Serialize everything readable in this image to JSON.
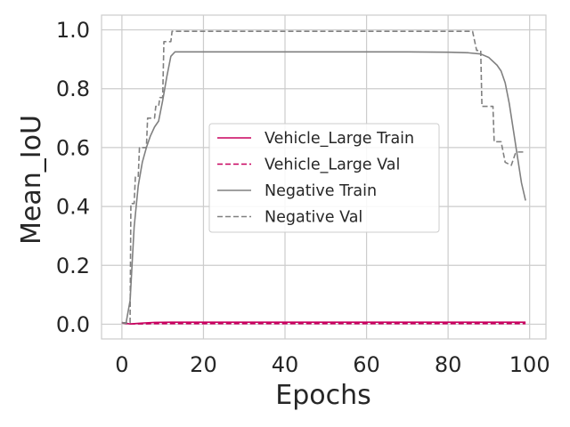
{
  "chart_data": {
    "type": "line",
    "title": "",
    "xlabel": "Epochs",
    "ylabel": "Mean_IoU",
    "xlim": [
      -5,
      104
    ],
    "ylim": [
      -0.05,
      1.05
    ],
    "xticks": [
      0,
      20,
      40,
      60,
      80,
      100
    ],
    "xtick_labels": [
      "0",
      "20",
      "40",
      "60",
      "80",
      "100"
    ],
    "yticks": [
      0.0,
      0.2,
      0.4,
      0.6,
      0.8,
      1.0
    ],
    "ytick_labels": [
      "0.0",
      "0.2",
      "0.4",
      "0.6",
      "0.8",
      "1.0"
    ],
    "grid": true,
    "legend_position": "center-right",
    "series": [
      {
        "name": "Vehicle_Large Train",
        "color": "#c8005f",
        "dash": "solid",
        "points": [
          [
            0,
            0.006
          ],
          [
            1,
            0.003
          ],
          [
            2,
            0.001
          ],
          [
            3,
            0.002
          ],
          [
            5,
            0.004
          ],
          [
            8,
            0.006
          ],
          [
            12,
            0.007
          ],
          [
            20,
            0.007
          ],
          [
            40,
            0.007
          ],
          [
            60,
            0.007
          ],
          [
            80,
            0.007
          ],
          [
            99,
            0.007
          ]
        ]
      },
      {
        "name": "Vehicle_Large Val",
        "color": "#c8005f",
        "dash": "dashed",
        "points": [
          [
            0,
            0.005
          ],
          [
            1,
            0.002
          ],
          [
            2,
            0.001
          ],
          [
            3,
            0.001
          ],
          [
            5,
            0.001
          ],
          [
            8,
            0.002
          ],
          [
            12,
            0.002
          ],
          [
            30,
            0.002
          ],
          [
            60,
            0.002
          ],
          [
            99,
            0.002
          ]
        ]
      },
      {
        "name": "Negative Train",
        "color": "#808080",
        "dash": "solid",
        "points": [
          [
            0,
            0.006
          ],
          [
            1,
            0.003
          ],
          [
            2,
            0.08
          ],
          [
            3,
            0.33
          ],
          [
            4,
            0.47
          ],
          [
            5,
            0.55
          ],
          [
            6,
            0.6
          ],
          [
            7,
            0.64
          ],
          [
            8,
            0.67
          ],
          [
            9,
            0.69
          ],
          [
            10,
            0.76
          ],
          [
            11,
            0.84
          ],
          [
            12,
            0.91
          ],
          [
            13,
            0.925
          ],
          [
            20,
            0.925
          ],
          [
            40,
            0.925
          ],
          [
            60,
            0.925
          ],
          [
            70,
            0.925
          ],
          [
            80,
            0.924
          ],
          [
            85,
            0.922
          ],
          [
            88,
            0.918
          ],
          [
            90,
            0.906
          ],
          [
            92,
            0.88
          ],
          [
            93,
            0.86
          ],
          [
            94,
            0.82
          ],
          [
            95,
            0.75
          ],
          [
            96,
            0.66
          ],
          [
            97,
            0.57
          ],
          [
            98,
            0.48
          ],
          [
            99,
            0.42
          ]
        ]
      },
      {
        "name": "Negative Val",
        "color": "#808080",
        "dash": "dashed",
        "points": [
          [
            0,
            0.005
          ],
          [
            1,
            0.005
          ],
          [
            2,
            0.005
          ],
          [
            2.2,
            0.41
          ],
          [
            3,
            0.41
          ],
          [
            3.3,
            0.5
          ],
          [
            4,
            0.5
          ],
          [
            4.3,
            0.6
          ],
          [
            6,
            0.6
          ],
          [
            6.3,
            0.7
          ],
          [
            8,
            0.7
          ],
          [
            8.3,
            0.74
          ],
          [
            9,
            0.74
          ],
          [
            9.3,
            0.77
          ],
          [
            10,
            0.77
          ],
          [
            10.3,
            0.96
          ],
          [
            12,
            0.96
          ],
          [
            12.3,
            0.995
          ],
          [
            86,
            0.995
          ],
          [
            87,
            0.93
          ],
          [
            88,
            0.93
          ],
          [
            88.3,
            0.74
          ],
          [
            91,
            0.74
          ],
          [
            91.3,
            0.62
          ],
          [
            93,
            0.62
          ],
          [
            94,
            0.55
          ],
          [
            95.5,
            0.54
          ],
          [
            96.5,
            0.58
          ],
          [
            97,
            0.585
          ],
          [
            99,
            0.585
          ]
        ]
      }
    ]
  }
}
